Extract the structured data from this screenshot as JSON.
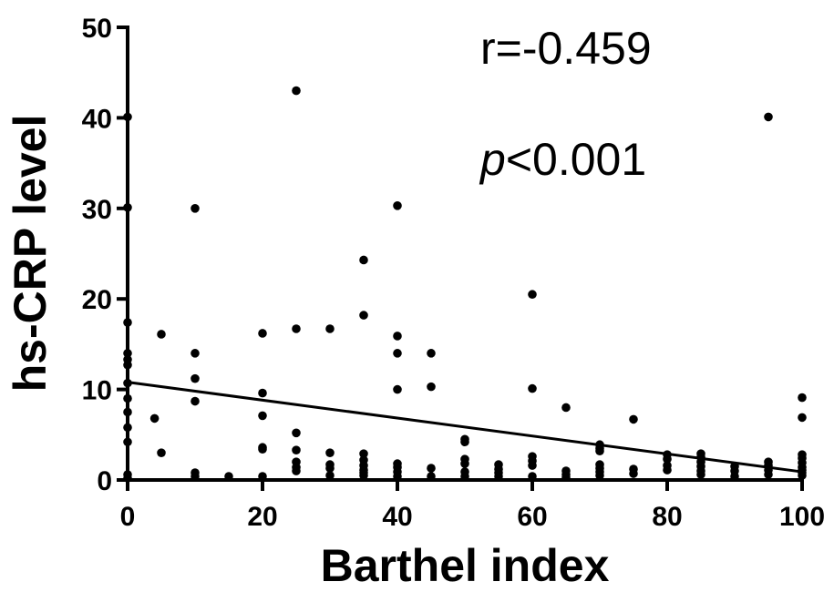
{
  "chart_data": {
    "type": "scatter",
    "title": "",
    "xlabel": "Barthel index",
    "ylabel": "hs-CRP level",
    "xlim": [
      0,
      100
    ],
    "ylim": [
      0,
      50
    ],
    "x_ticks": [
      0,
      20,
      40,
      60,
      80,
      100
    ],
    "y_ticks": [
      0,
      10,
      20,
      30,
      40,
      50
    ],
    "grid": false,
    "annotations": {
      "r": "r=-0.459",
      "p_italic": "p",
      "p_rest": "<0.001"
    },
    "regression_line": {
      "x": [
        0,
        100
      ],
      "y": [
        10.8,
        0.9
      ]
    },
    "points": [
      [
        0,
        40.1
      ],
      [
        0,
        30.1
      ],
      [
        0,
        17.4
      ],
      [
        0,
        14.0
      ],
      [
        0,
        13.3
      ],
      [
        0,
        12.7
      ],
      [
        0,
        10.7
      ],
      [
        0,
        9.0
      ],
      [
        0,
        7.5
      ],
      [
        0,
        5.8
      ],
      [
        0,
        4.2
      ],
      [
        0,
        0.6
      ],
      [
        0,
        0.2
      ],
      [
        4,
        6.8
      ],
      [
        5,
        16.1
      ],
      [
        5,
        3.0
      ],
      [
        10,
        30.0
      ],
      [
        10,
        14.0
      ],
      [
        10,
        11.2
      ],
      [
        10,
        8.7
      ],
      [
        10,
        0.8
      ],
      [
        10,
        0.4
      ],
      [
        15,
        0.4
      ],
      [
        20,
        16.2
      ],
      [
        20,
        9.6
      ],
      [
        20,
        7.1
      ],
      [
        20,
        3.6
      ],
      [
        20,
        3.4
      ],
      [
        20,
        0.4
      ],
      [
        25,
        43.0
      ],
      [
        25,
        16.7
      ],
      [
        25,
        5.2
      ],
      [
        25,
        3.3
      ],
      [
        25,
        2.0
      ],
      [
        25,
        1.4
      ],
      [
        25,
        1.0
      ],
      [
        30,
        16.7
      ],
      [
        30,
        3.0
      ],
      [
        30,
        1.7
      ],
      [
        30,
        1.3
      ],
      [
        30,
        0.5
      ],
      [
        35,
        24.3
      ],
      [
        35,
        18.2
      ],
      [
        35,
        2.9
      ],
      [
        35,
        2.2
      ],
      [
        35,
        1.6
      ],
      [
        35,
        1.1
      ],
      [
        35,
        0.8
      ],
      [
        35,
        0.5
      ],
      [
        40,
        30.3
      ],
      [
        40,
        15.9
      ],
      [
        40,
        14.0
      ],
      [
        40,
        10.0
      ],
      [
        40,
        1.8
      ],
      [
        40,
        1.4
      ],
      [
        40,
        0.9
      ],
      [
        40,
        0.4
      ],
      [
        45,
        14.0
      ],
      [
        45,
        10.3
      ],
      [
        45,
        1.3
      ],
      [
        45,
        0.4
      ],
      [
        50,
        4.5
      ],
      [
        50,
        4.2
      ],
      [
        50,
        2.3
      ],
      [
        50,
        1.8
      ],
      [
        50,
        0.9
      ],
      [
        50,
        0.4
      ],
      [
        55,
        1.7
      ],
      [
        55,
        1.2
      ],
      [
        55,
        0.8
      ],
      [
        55,
        0.4
      ],
      [
        60,
        20.5
      ],
      [
        60,
        10.1
      ],
      [
        60,
        2.6
      ],
      [
        60,
        2.1
      ],
      [
        60,
        1.6
      ],
      [
        60,
        0.4
      ],
      [
        65,
        8.0
      ],
      [
        65,
        1.0
      ],
      [
        65,
        0.6
      ],
      [
        65,
        0.3
      ],
      [
        70,
        3.9
      ],
      [
        70,
        3.5
      ],
      [
        70,
        3.2
      ],
      [
        70,
        1.7
      ],
      [
        70,
        1.3
      ],
      [
        70,
        0.9
      ],
      [
        70,
        0.5
      ],
      [
        75,
        6.7
      ],
      [
        75,
        1.2
      ],
      [
        75,
        0.7
      ],
      [
        80,
        2.8
      ],
      [
        80,
        2.3
      ],
      [
        80,
        1.6
      ],
      [
        80,
        1.1
      ],
      [
        85,
        2.9
      ],
      [
        85,
        2.5
      ],
      [
        85,
        2.0
      ],
      [
        85,
        1.5
      ],
      [
        85,
        1.0
      ],
      [
        85,
        0.6
      ],
      [
        90,
        1.5
      ],
      [
        90,
        1.0
      ],
      [
        90,
        0.4
      ],
      [
        95,
        40.1
      ],
      [
        95,
        2.0
      ],
      [
        95,
        1.6
      ],
      [
        95,
        1.1
      ],
      [
        95,
        0.6
      ],
      [
        100,
        9.1
      ],
      [
        100,
        6.9
      ],
      [
        100,
        2.8
      ],
      [
        100,
        2.4
      ],
      [
        100,
        1.9
      ],
      [
        100,
        1.4
      ],
      [
        100,
        1.1
      ],
      [
        100,
        0.8
      ],
      [
        100,
        0.5
      ]
    ]
  }
}
